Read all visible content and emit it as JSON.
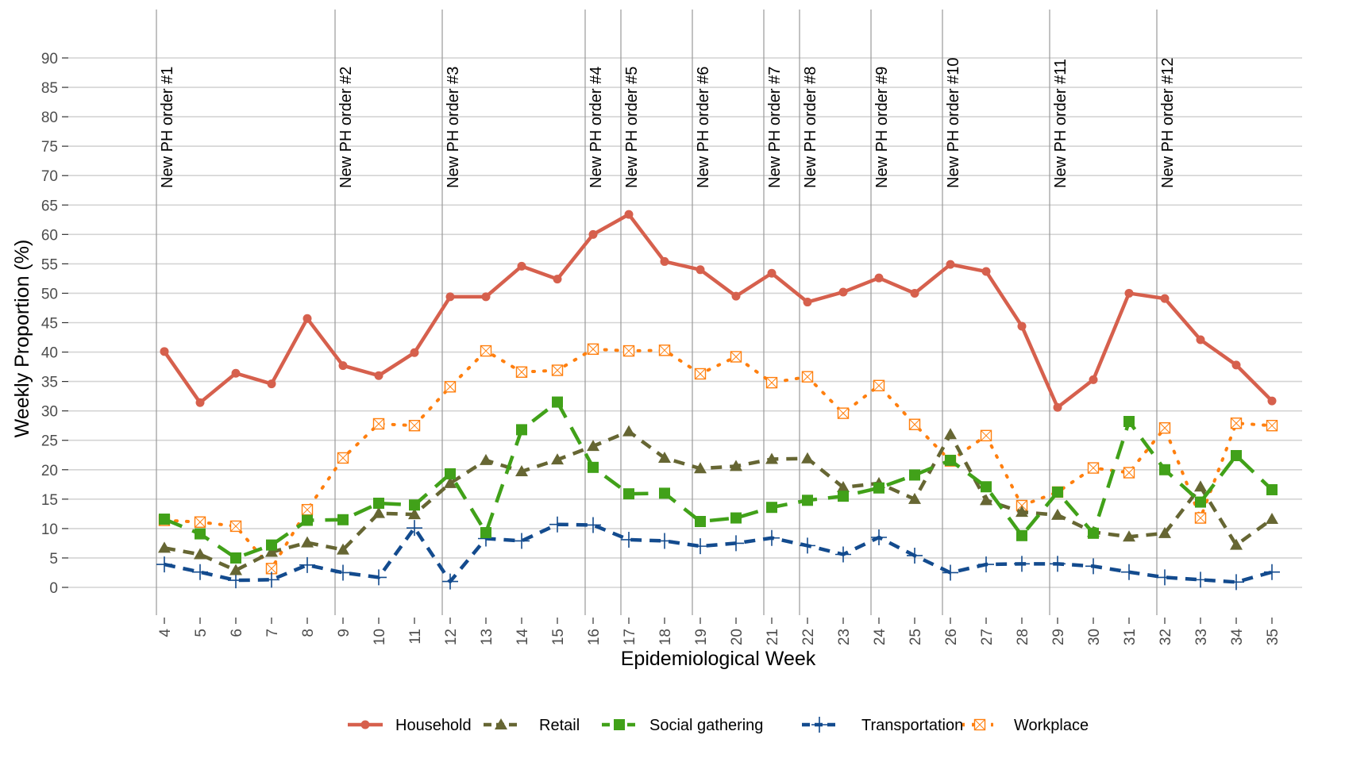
{
  "chart_data": {
    "type": "line",
    "title": "",
    "xlabel": "Epidemiological Week",
    "ylabel": "Weekly Proportion (%)",
    "ylim": [
      0,
      90
    ],
    "yticks": [
      0,
      5,
      10,
      15,
      20,
      25,
      30,
      35,
      40,
      45,
      50,
      55,
      60,
      65,
      70,
      75,
      80,
      85,
      90
    ],
    "x": [
      4,
      5,
      6,
      7,
      8,
      9,
      10,
      11,
      12,
      13,
      14,
      15,
      16,
      17,
      18,
      19,
      20,
      21,
      22,
      23,
      24,
      25,
      26,
      27,
      28,
      29,
      30,
      31,
      32,
      33,
      34,
      35
    ],
    "grid": true,
    "legend_position": "bottom",
    "series": [
      {
        "name": "Household",
        "color": "#D6604D",
        "linestyle": "solid",
        "marker": "circle",
        "values": [
          40.1,
          31.4,
          36.4,
          34.6,
          45.7,
          37.7,
          36.0,
          39.9,
          49.4,
          49.4,
          54.6,
          52.4,
          60.0,
          63.4,
          55.4,
          54.0,
          49.5,
          53.4,
          48.5,
          50.2,
          52.6,
          50.0,
          54.9,
          53.7,
          44.4,
          30.6,
          35.3,
          50.0,
          49.1,
          42.1,
          37.8,
          31.7
        ]
      },
      {
        "name": "Retail",
        "color": "#666633",
        "linestyle": "dashed",
        "marker": "triangle",
        "values": [
          6.7,
          5.6,
          2.9,
          6.0,
          7.6,
          6.4,
          12.6,
          12.4,
          17.7,
          21.6,
          19.7,
          21.7,
          24.0,
          26.5,
          22.0,
          20.2,
          20.6,
          21.8,
          21.9,
          17.0,
          17.7,
          15.0,
          26.0,
          14.8,
          12.8,
          12.3,
          9.4,
          8.6,
          9.2,
          17.1,
          7.2,
          11.6
        ]
      },
      {
        "name": "Social gathering",
        "color": "#41A119",
        "linestyle": "longdash",
        "marker": "square",
        "values": [
          11.6,
          9.1,
          5.0,
          7.2,
          11.4,
          11.5,
          14.3,
          14.0,
          19.3,
          9.3,
          26.8,
          31.5,
          20.4,
          15.9,
          16.0,
          11.2,
          11.8,
          13.6,
          14.8,
          15.5,
          16.9,
          19.1,
          21.6,
          17.1,
          8.8,
          16.2,
          9.2,
          28.2,
          20.0,
          14.5,
          22.4,
          16.6
        ]
      },
      {
        "name": "Transportation",
        "color": "#134B8E",
        "linestyle": "dashed",
        "marker": "plus",
        "values": [
          3.9,
          2.6,
          1.2,
          1.3,
          3.8,
          2.5,
          1.7,
          10.1,
          1.0,
          8.3,
          7.9,
          10.7,
          10.6,
          8.1,
          7.9,
          7.0,
          7.5,
          8.4,
          7.1,
          5.6,
          8.5,
          5.4,
          2.5,
          3.9,
          4.0,
          4.0,
          3.6,
          2.6,
          1.7,
          1.3,
          0.9,
          2.6
        ]
      },
      {
        "name": "Workplace",
        "color": "#FF7F0E",
        "linestyle": "dotted",
        "marker": "boxed-x",
        "values": [
          11.4,
          11.1,
          10.4,
          3.2,
          13.2,
          22.0,
          27.8,
          27.5,
          34.1,
          40.2,
          36.6,
          36.9,
          40.5,
          40.2,
          40.3,
          36.3,
          39.2,
          34.8,
          35.8,
          29.6,
          34.3,
          27.7,
          21.5,
          25.8,
          13.9,
          16.2,
          20.3,
          19.5,
          27.1,
          11.8,
          27.9,
          27.5
        ]
      }
    ],
    "annotations": [
      {
        "week": 4,
        "label": "New PH order #1"
      },
      {
        "week": 9,
        "label": "New PH order #2"
      },
      {
        "week": 12,
        "label": "New PH order #3"
      },
      {
        "week": 16,
        "label": "New PH order #4"
      },
      {
        "week": 17,
        "label": "New PH order #5"
      },
      {
        "week": 19,
        "label": "New PH order #6"
      },
      {
        "week": 21,
        "label": "New PH order #7"
      },
      {
        "week": 22,
        "label": "New PH order #8"
      },
      {
        "week": 24,
        "label": "New PH order #9"
      },
      {
        "week": 26,
        "label": "New PH order #10"
      },
      {
        "week": 29,
        "label": "New PH order #11"
      },
      {
        "week": 32,
        "label": "New PH order #12"
      }
    ]
  }
}
